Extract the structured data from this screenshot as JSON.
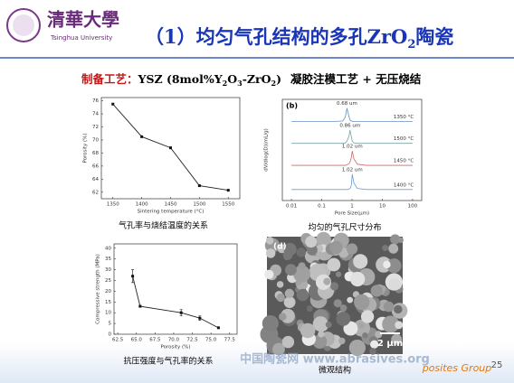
{
  "header": {
    "logo_cn": "清華大學",
    "logo_en": "Tsinghua University",
    "title": [
      "（1）均匀气孔结构的多孔ZrO",
      "2",
      "陶瓷"
    ]
  },
  "process": [
    "制备工艺：",
    "YSZ (8mol%Y",
    "2",
    "O",
    "3",
    "-ZrO",
    "2",
    ")",
    "凝胶注模工艺 + 无压烧结"
  ],
  "chart_data": [
    {
      "type": "line",
      "caption": "气孔率与烧结温度的关系",
      "xlabel": "Sintering temperature (°C)",
      "ylabel": "Porosity (%)",
      "x": [
        1350,
        1400,
        1450,
        1500,
        1550
      ],
      "series": [
        {
          "color": "#222222",
          "values": [
            75.5,
            70.5,
            68.8,
            63,
            62.3
          ]
        }
      ],
      "xlim": [
        1330,
        1570
      ],
      "xticks": [
        1350,
        1400,
        1450,
        1500,
        1550
      ],
      "ylim": [
        61,
        76.5
      ],
      "yticks": [
        62,
        64,
        66,
        68,
        70,
        72,
        74,
        76
      ]
    },
    {
      "type": "line",
      "panel": "(b)",
      "caption": "均匀的气孔尺寸分布",
      "xlabel": "Pore Size(μm)",
      "ylabel": "dV/dlog(D)(mL/g)",
      "log_x": true,
      "x": [
        0.01,
        0.1,
        0.3,
        0.5,
        0.6,
        0.68,
        0.8,
        0.86,
        0.95,
        1.02,
        1.15,
        1.5,
        3,
        10,
        100
      ],
      "series": [
        {
          "name": "1350 °C",
          "peak_label": "0.68 um",
          "color": "#6a8fc8",
          "values": [
            3.6,
            3.6,
            3.6,
            3.62,
            3.8,
            4.2,
            3.8,
            3.66,
            3.62,
            3.6,
            3.6,
            3.6,
            3.6,
            3.6,
            3.6
          ]
        },
        {
          "name": "1500 °C",
          "peak_label": "0.86 um",
          "color": "#7aa0a0",
          "values": [
            2.6,
            2.6,
            2.6,
            2.6,
            2.62,
            2.7,
            2.95,
            3.2,
            2.9,
            2.7,
            2.62,
            2.6,
            2.6,
            2.6,
            2.6
          ]
        },
        {
          "name": "1450 °C",
          "peak_label": "1.02 um",
          "color": "#c86a6a",
          "values": [
            1.6,
            1.6,
            1.6,
            1.6,
            1.6,
            1.62,
            1.68,
            1.75,
            1.95,
            2.25,
            1.9,
            1.65,
            1.6,
            1.6,
            1.6
          ]
        },
        {
          "name": "1400 °C",
          "peak_label": "1.02 um",
          "color": "#6a9ad0",
          "values": [
            0.5,
            0.5,
            0.5,
            0.5,
            0.5,
            0.5,
            0.52,
            0.55,
            0.7,
            1.2,
            0.8,
            0.55,
            0.5,
            0.5,
            0.5
          ]
        }
      ],
      "xlim": [
        0.005,
        200
      ],
      "xticks": [
        0.01,
        0.1,
        1,
        10,
        100
      ],
      "ylim": [
        0,
        4.6
      ]
    },
    {
      "type": "line",
      "caption": "抗压强度与气孔率的关系",
      "xlabel": "Porosity (%)",
      "ylabel": "Compressive strength (MPa)",
      "x": [
        64.5,
        65.5,
        71,
        73.5,
        76
      ],
      "series": [
        {
          "color": "#222222",
          "values": [
            27,
            13,
            10,
            7.5,
            3
          ],
          "errors": [
            3,
            null,
            1.5,
            1,
            null
          ]
        }
      ],
      "xlim": [
        62,
        78.5
      ],
      "xticks": [
        62.5,
        {
          "value": 65,
          "label": "65.0"
        },
        67.5,
        {
          "value": 70,
          "label": "70.0"
        },
        72.5,
        {
          "value": 75,
          "label": "75.0"
        },
        77.5
      ],
      "ylim": [
        0,
        42
      ],
      "yticks": [
        0,
        5,
        10,
        15,
        20,
        25,
        30,
        35,
        40
      ]
    }
  ],
  "image": {
    "panel": "(d)",
    "scale": "2 μm",
    "caption": "微观结构"
  },
  "footer": {
    "watermark": "中国陶瓷网 www.abrasives.org",
    "group": "posites Group",
    "page": "25"
  }
}
